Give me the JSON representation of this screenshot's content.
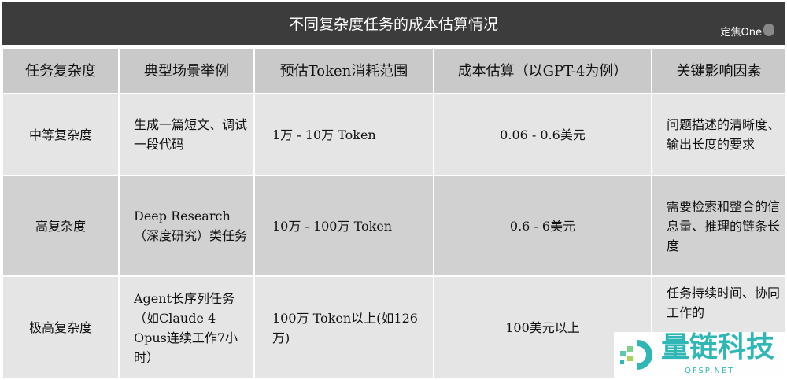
{
  "title": "不同复杂度任务的成本估算情况",
  "brand": "定焦One",
  "headers": [
    "任务复杂度",
    "典型场景举例",
    "预估Token消耗范围",
    "成本估算（以GPT-4为例）",
    "关键影响因素"
  ],
  "rows": [
    [
      "中等复杂度",
      "生成一篇短文、调试一段代码",
      "1万 - 10万 Token",
      "0.06 - 0.6美元",
      "问题描述的清晰度、输出长度的要求"
    ],
    [
      "高复杂度",
      "Deep Research（深度研究）类任务",
      "10万 - 100万 Token",
      "0.6 - 6美元",
      "需要检索和整合的信息量、推理的链条长度"
    ],
    [
      "极高复杂度",
      "Agent长序列任务（如Claude 4 Opus连续工作7小时）",
      "100万 Token以上(如126万)",
      "100美元以上",
      "任务持续时间、协同工作的"
    ]
  ],
  "watermark": {
    "name": "量链科技",
    "url": "QFSP.NET",
    "color": "#2fb7b5"
  }
}
